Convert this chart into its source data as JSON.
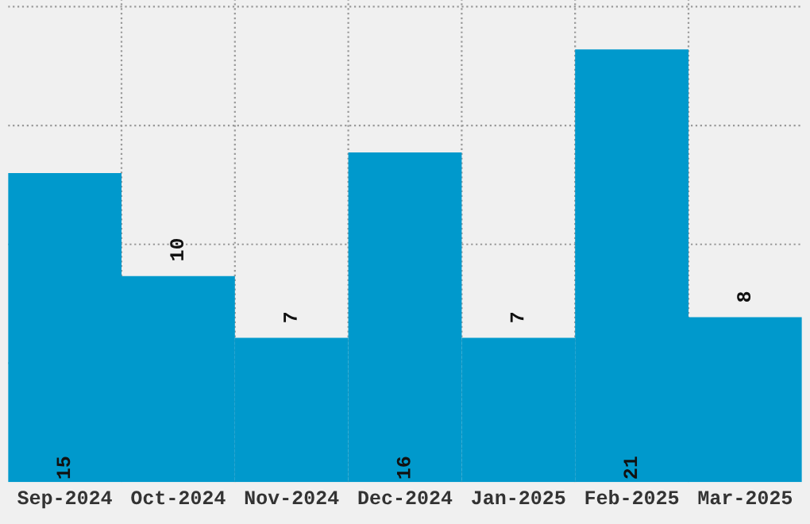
{
  "chart_data": {
    "type": "bar",
    "categories": [
      "Sep-2024",
      "Oct-2024",
      "Nov-2024",
      "Dec-2024",
      "Jan-2025",
      "Feb-2025",
      "Mar-2025"
    ],
    "values": [
      15,
      10,
      7,
      16,
      7,
      21,
      8
    ],
    "color": "#0099cc",
    "data_labels": true,
    "ylim": [
      0,
      23.4
    ],
    "yticks": [
      {
        "value": 5.77,
        "label": null
      },
      {
        "value": 11.54,
        "label": null
      },
      {
        "value": 17.31,
        "label": null
      },
      {
        "value": 23.08,
        "label": null
      }
    ],
    "tick_labels": "x",
    "grid": true
  }
}
